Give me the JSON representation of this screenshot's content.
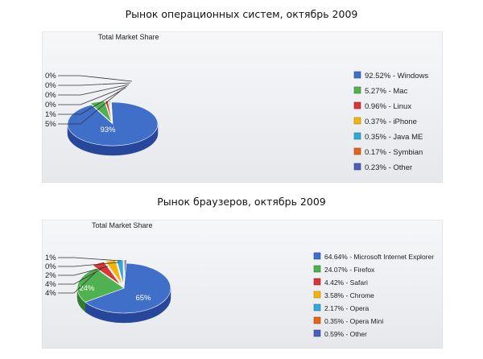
{
  "heading1": "Рынок операционных систем, октябрь 2009",
  "heading2": "Рынок браузеров, октябрь 2009",
  "chart_data": [
    {
      "type": "pie",
      "title": "Total Market Share",
      "slices": [
        {
          "label": "Windows",
          "value": 92.52,
          "legend": "92.52% - Windows",
          "color": "#3f6fc9",
          "dark": "#27489a"
        },
        {
          "label": "Mac",
          "value": 5.27,
          "legend": "5.27% - Mac",
          "color": "#4fb14f",
          "dark": "#2f7d2f"
        },
        {
          "label": "Linux",
          "value": 0.96,
          "legend": "0.96% - Linux",
          "color": "#d73636",
          "dark": "#992222"
        },
        {
          "label": "iPhone",
          "value": 0.37,
          "legend": "0.37% - iPhone",
          "color": "#f2b40b",
          "dark": "#b07f00"
        },
        {
          "label": "Java ME",
          "value": 0.35,
          "legend": "0.35% - Java ME",
          "color": "#33a9d9",
          "dark": "#1f7699"
        },
        {
          "label": "Symbian",
          "value": 0.17,
          "legend": "0.17% - Symbian",
          "color": "#e0651a",
          "dark": "#a04512"
        },
        {
          "label": "Other",
          "value": 0.23,
          "legend": "0.23% - Other",
          "color": "#4a5fb8",
          "dark": "#303f82"
        }
      ],
      "inner_label": "93%",
      "callouts": [
        "0%",
        "0%",
        "0%",
        "0%",
        "1%",
        "5%"
      ]
    },
    {
      "type": "pie",
      "title": "Total Market Share",
      "slices": [
        {
          "label": "Microsoft Internet Explorer",
          "value": 64.64,
          "legend": "64.64% - Microsoft Internet Explorer",
          "color": "#3f6fc9",
          "dark": "#27489a"
        },
        {
          "label": "Firefox",
          "value": 24.07,
          "legend": "24.07% - Firefox",
          "color": "#4fb14f",
          "dark": "#2f7d2f"
        },
        {
          "label": "Safari",
          "value": 4.42,
          "legend": "4.42% - Safari",
          "color": "#d73636",
          "dark": "#992222"
        },
        {
          "label": "Chrome",
          "value": 3.58,
          "legend": "3.58% - Chrome",
          "color": "#f2b40b",
          "dark": "#b07f00"
        },
        {
          "label": "Opera",
          "value": 2.17,
          "legend": "2.17% - Opera",
          "color": "#33a9d9",
          "dark": "#1f7699"
        },
        {
          "label": "Opera Mini",
          "value": 0.35,
          "legend": "0.35% - Opera Mini",
          "color": "#e0651a",
          "dark": "#a04512"
        },
        {
          "label": "Other",
          "value": 0.59,
          "legend": "0.59% - Other",
          "color": "#4a5fb8",
          "dark": "#303f82"
        }
      ],
      "inner_labels": [
        "65%",
        "24%"
      ],
      "callouts": [
        "1%",
        "0%",
        "2%",
        "4%",
        "4%"
      ]
    }
  ]
}
